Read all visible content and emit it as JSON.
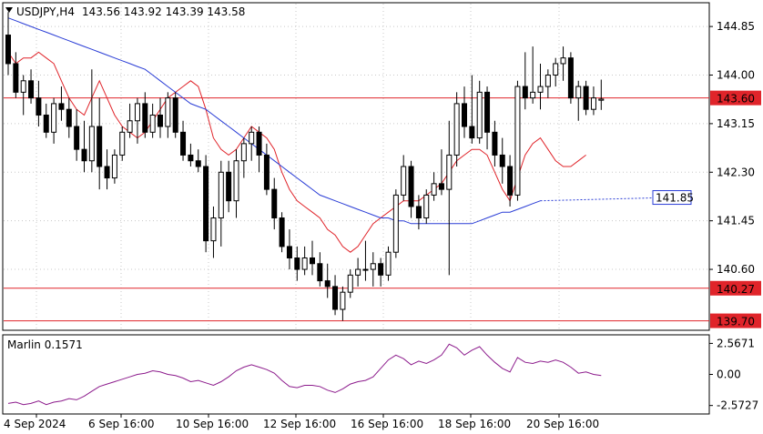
{
  "header": {
    "symbol": "USDJPY,H4",
    "ohlc": "143.56 143.92 143.39 143.58"
  },
  "indicator": {
    "label": "Marlin 0.1571"
  },
  "colors": {
    "background": "#ffffff",
    "candle": "#000000",
    "ma_fast": "#e0242a",
    "ma_slow": "#2a3dd6",
    "level_line": "#e0242a",
    "oscillator": "#8c1b8c",
    "tag_fill": "#e0242a"
  },
  "chart_data": [
    {
      "type": "line",
      "subtype": "candlestick",
      "y_ticks": [
        "144.85",
        "144.00",
        "143.15",
        "142.30",
        "141.45",
        "140.60"
      ],
      "ylim": [
        139.55,
        145.25
      ],
      "x_ticks": [
        "4 Sep 2024",
        "6 Sep 16:00",
        "10 Sep 16:00",
        "12 Sep 16:00",
        "16 Sep 16:00",
        "18 Sep 16:00",
        "20 Sep 16:00"
      ],
      "levels": [
        {
          "value": 143.6,
          "label": "143.60"
        },
        {
          "value": 140.27,
          "label": "140.27"
        },
        {
          "value": 139.7,
          "label": "139.70"
        }
      ],
      "ma_tag": {
        "value": 141.85,
        "label": "141.85"
      },
      "candles": [
        [
          144.7,
          145.1,
          144.0,
          144.2
        ],
        [
          144.2,
          144.4,
          143.6,
          143.7
        ],
        [
          143.7,
          144.0,
          143.3,
          143.9
        ],
        [
          143.9,
          144.1,
          143.5,
          143.6
        ],
        [
          143.6,
          143.9,
          143.1,
          143.3
        ],
        [
          143.3,
          143.5,
          142.9,
          143.0
        ],
        [
          143.0,
          143.6,
          142.8,
          143.5
        ],
        [
          143.5,
          143.8,
          143.2,
          143.4
        ],
        [
          143.4,
          143.6,
          142.9,
          143.1
        ],
        [
          143.1,
          143.4,
          142.5,
          142.7
        ],
        [
          142.7,
          143.2,
          142.3,
          142.5
        ],
        [
          142.5,
          144.1,
          142.3,
          143.1
        ],
        [
          143.1,
          143.6,
          142.0,
          142.4
        ],
        [
          142.4,
          142.7,
          142.0,
          142.2
        ],
        [
          142.2,
          142.7,
          142.1,
          142.6
        ],
        [
          142.6,
          143.1,
          142.5,
          143.0
        ],
        [
          143.0,
          143.5,
          142.9,
          143.2
        ],
        [
          143.2,
          143.6,
          142.8,
          143.5
        ],
        [
          143.5,
          143.7,
          142.9,
          143.0
        ],
        [
          143.0,
          143.5,
          142.9,
          143.3
        ],
        [
          143.3,
          143.6,
          142.9,
          143.1
        ],
        [
          143.1,
          143.7,
          142.9,
          143.6
        ],
        [
          143.6,
          143.7,
          142.9,
          143.0
        ],
        [
          143.0,
          143.2,
          142.5,
          142.6
        ],
        [
          142.6,
          142.8,
          142.4,
          142.5
        ],
        [
          142.5,
          142.7,
          142.3,
          142.4
        ],
        [
          142.4,
          142.6,
          140.9,
          141.1
        ],
        [
          141.1,
          141.7,
          140.8,
          141.5
        ],
        [
          141.5,
          142.5,
          141.0,
          142.3
        ],
        [
          142.3,
          142.5,
          141.6,
          141.8
        ],
        [
          141.8,
          142.7,
          141.5,
          142.5
        ],
        [
          142.5,
          142.9,
          142.2,
          142.8
        ],
        [
          142.8,
          143.1,
          142.5,
          143.0
        ],
        [
          143.0,
          143.1,
          142.3,
          142.6
        ],
        [
          142.6,
          142.8,
          141.9,
          142.0
        ],
        [
          142.0,
          142.2,
          141.3,
          141.5
        ],
        [
          141.5,
          141.6,
          140.9,
          141.0
        ],
        [
          141.0,
          141.3,
          140.6,
          140.8
        ],
        [
          140.8,
          141.0,
          140.4,
          140.6
        ],
        [
          140.6,
          141.0,
          140.5,
          140.8
        ],
        [
          140.8,
          141.1,
          140.5,
          140.7
        ],
        [
          140.7,
          140.9,
          140.3,
          140.4
        ],
        [
          140.4,
          140.7,
          140.1,
          140.3
        ],
        [
          140.3,
          140.5,
          139.8,
          139.9
        ],
        [
          139.9,
          140.3,
          139.7,
          140.2
        ],
        [
          140.2,
          140.6,
          140.1,
          140.5
        ],
        [
          140.5,
          140.8,
          140.3,
          140.6
        ],
        [
          140.6,
          141.1,
          140.4,
          140.6
        ],
        [
          140.6,
          140.9,
          140.3,
          140.7
        ],
        [
          140.7,
          140.8,
          140.3,
          140.5
        ],
        [
          140.5,
          141.0,
          140.4,
          140.9
        ],
        [
          140.9,
          142.0,
          140.8,
          141.9
        ],
        [
          141.9,
          142.6,
          141.8,
          142.4
        ],
        [
          142.4,
          142.5,
          141.5,
          141.7
        ],
        [
          141.7,
          141.9,
          141.3,
          141.5
        ],
        [
          141.5,
          142.0,
          141.4,
          141.9
        ],
        [
          141.9,
          142.3,
          141.8,
          142.1
        ],
        [
          142.1,
          142.7,
          141.9,
          142.0
        ],
        [
          142.0,
          143.2,
          140.5,
          142.6
        ],
        [
          142.6,
          143.7,
          142.4,
          143.5
        ],
        [
          143.5,
          143.8,
          142.9,
          143.1
        ],
        [
          143.1,
          144.0,
          142.8,
          142.9
        ],
        [
          142.9,
          143.9,
          142.8,
          143.7
        ],
        [
          143.7,
          143.8,
          142.7,
          143.0
        ],
        [
          143.0,
          143.2,
          142.4,
          142.6
        ],
        [
          142.6,
          142.9,
          142.1,
          142.4
        ],
        [
          142.4,
          142.6,
          141.7,
          141.9
        ],
        [
          141.9,
          143.9,
          141.8,
          143.8
        ],
        [
          143.8,
          144.4,
          143.4,
          143.6
        ],
        [
          143.6,
          144.5,
          143.5,
          143.7
        ],
        [
          143.7,
          144.2,
          143.4,
          143.8
        ],
        [
          143.8,
          144.1,
          143.6,
          144.0
        ],
        [
          144.0,
          144.3,
          143.8,
          144.2
        ],
        [
          144.2,
          144.5,
          143.9,
          144.3
        ],
        [
          144.3,
          144.4,
          143.5,
          143.6
        ],
        [
          143.6,
          143.9,
          143.2,
          143.8
        ],
        [
          143.8,
          143.9,
          143.3,
          143.4
        ],
        [
          143.4,
          143.8,
          143.3,
          143.6
        ],
        [
          143.56,
          143.92,
          143.39,
          143.58
        ]
      ],
      "ma_fast": [
        144.4,
        144.2,
        144.3,
        144.3,
        144.4,
        144.3,
        144.2,
        143.9,
        143.6,
        143.4,
        143.3,
        143.6,
        143.9,
        143.6,
        143.3,
        143.1,
        143.0,
        142.9,
        143.0,
        143.2,
        143.4,
        143.6,
        143.7,
        143.8,
        143.9,
        143.8,
        143.4,
        142.9,
        142.7,
        142.6,
        142.7,
        142.9,
        143.1,
        143.0,
        142.9,
        142.7,
        142.3,
        142.0,
        141.8,
        141.7,
        141.6,
        141.5,
        141.3,
        141.2,
        141.0,
        140.9,
        141.0,
        141.2,
        141.4,
        141.5,
        141.6,
        141.7,
        141.8,
        141.8,
        141.8,
        141.9,
        142.0,
        142.1,
        142.3,
        142.5,
        142.6,
        142.7,
        142.7,
        142.6,
        142.3,
        142.0,
        141.8,
        142.2,
        142.6,
        142.8,
        142.9,
        142.7,
        142.5,
        142.4,
        142.4,
        142.5,
        142.6
      ],
      "ma_slow": [
        145.0,
        144.95,
        144.9,
        144.85,
        144.8,
        144.75,
        144.7,
        144.65,
        144.6,
        144.55,
        144.5,
        144.45,
        144.4,
        144.35,
        144.3,
        144.25,
        144.2,
        144.15,
        144.1,
        144.0,
        143.9,
        143.8,
        143.7,
        143.6,
        143.5,
        143.45,
        143.4,
        143.3,
        143.2,
        143.1,
        143.0,
        142.9,
        142.8,
        142.7,
        142.6,
        142.5,
        142.4,
        142.3,
        142.2,
        142.1,
        142.0,
        141.9,
        141.85,
        141.8,
        141.75,
        141.7,
        141.65,
        141.6,
        141.55,
        141.5,
        141.5,
        141.45,
        141.45,
        141.4,
        141.4,
        141.4,
        141.4,
        141.4,
        141.4,
        141.4,
        141.4,
        141.4,
        141.45,
        141.5,
        141.55,
        141.6,
        141.6,
        141.65,
        141.7,
        141.75,
        141.8
      ],
      "ma_projection_end": 141.85,
      "oscillator": {
        "ylim": [
          -3.2,
          3.2
        ],
        "y_ticks": [
          "2.5671",
          "0.00",
          "-2.5727"
        ],
        "values": [
          -2.4,
          -2.3,
          -2.5,
          -2.4,
          -2.2,
          -2.5,
          -2.3,
          -2.2,
          -2.0,
          -2.1,
          -1.8,
          -1.4,
          -1.0,
          -0.8,
          -0.6,
          -0.4,
          -0.2,
          0.0,
          0.1,
          0.3,
          0.2,
          0.0,
          -0.1,
          -0.3,
          -0.6,
          -0.5,
          -0.7,
          -0.9,
          -0.6,
          -0.2,
          0.3,
          0.6,
          0.8,
          0.6,
          0.4,
          0.1,
          -0.5,
          -1.0,
          -1.1,
          -0.9,
          -0.9,
          -1.0,
          -1.3,
          -1.5,
          -1.2,
          -0.8,
          -0.6,
          -0.5,
          -0.2,
          0.5,
          1.2,
          1.6,
          1.3,
          0.8,
          1.1,
          0.9,
          1.2,
          1.6,
          2.5,
          2.2,
          1.6,
          2.0,
          2.3,
          1.6,
          1.0,
          0.5,
          0.2,
          1.4,
          1.0,
          0.9,
          1.1,
          1.0,
          1.2,
          1.0,
          0.6,
          0.1,
          0.2,
          0.0,
          -0.1
        ]
      }
    }
  ]
}
